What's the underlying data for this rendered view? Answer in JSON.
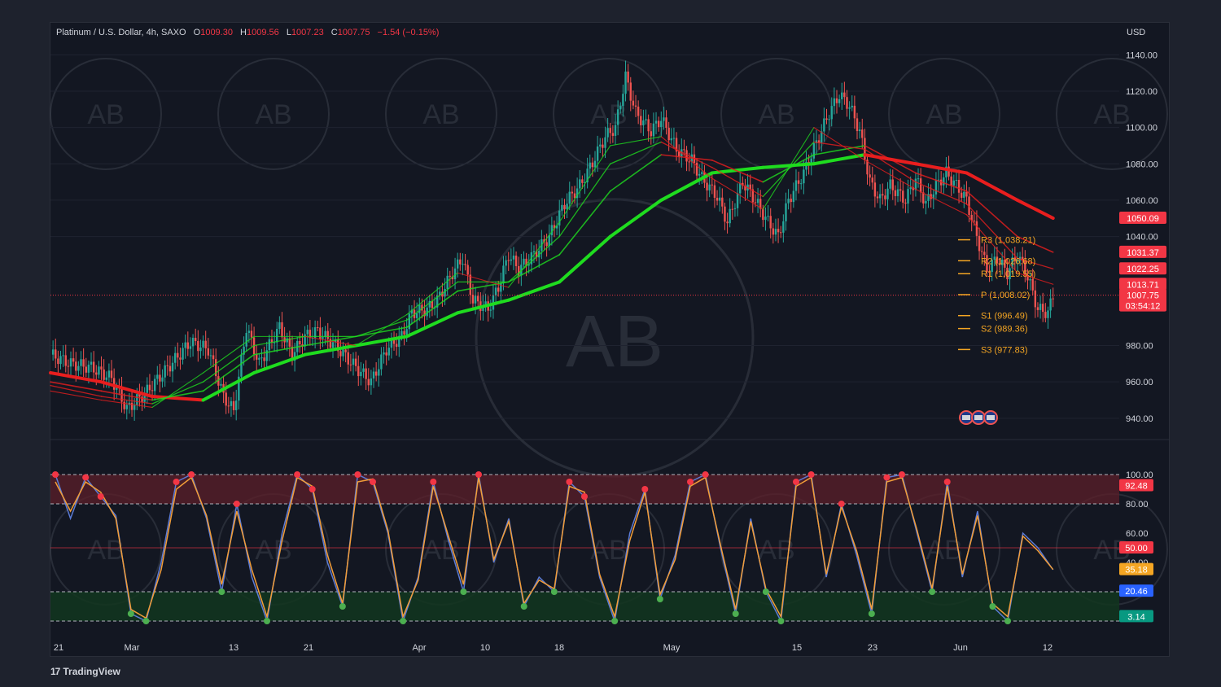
{
  "header": {
    "symbol": "Platinum / U.S. Dollar, 4h, SAXO",
    "open_label": "O",
    "open": "1009.30",
    "high_label": "H",
    "high": "1009.56",
    "low_label": "L",
    "low": "1007.23",
    "close_label": "C",
    "close": "1007.75",
    "change": "−1.54 (−0.15%)"
  },
  "currency": "USD",
  "branding": {
    "tradingview": "TradingView",
    "watermark": "AB"
  },
  "colors": {
    "background": "#131722",
    "up": "#26a69a",
    "down": "#ef5350",
    "ma_green": "#1fdc1f",
    "ma_red": "#e81e1e",
    "pivot": "#f5a623",
    "stoch_k": "#5b7bd5",
    "stoch_d": "#f29d38"
  },
  "chart_data": [
    {
      "type": "candlestick",
      "title": "Platinum / U.S. Dollar, 4h, SAXO",
      "ylim": [
        935,
        1150
      ],
      "y_ticks": [
        "1140.00",
        "1120.00",
        "1100.00",
        "1080.00",
        "1060.00",
        "1040.00",
        "980.00",
        "960.00",
        "940.00"
      ],
      "x_ticks": [
        "21",
        "Mar",
        "13",
        "21",
        "Apr",
        "10",
        "18",
        "May",
        "15",
        "23",
        "Jun",
        "12"
      ],
      "close_path": [
        [
          0,
          975
        ],
        [
          8,
          970
        ],
        [
          16,
          968
        ],
        [
          24,
          962
        ],
        [
          30,
          945
        ],
        [
          38,
          955
        ],
        [
          45,
          966
        ],
        [
          55,
          982
        ],
        [
          62,
          978
        ],
        [
          68,
          952
        ],
        [
          72,
          944
        ],
        [
          77,
          990
        ],
        [
          82,
          970
        ],
        [
          90,
          990
        ],
        [
          95,
          975
        ],
        [
          100,
          985
        ],
        [
          105,
          988
        ],
        [
          112,
          980
        ],
        [
          120,
          968
        ],
        [
          126,
          960
        ],
        [
          132,
          978
        ],
        [
          138,
          985
        ],
        [
          142,
          998
        ],
        [
          148,
          1000
        ],
        [
          152,
          1005
        ],
        [
          158,
          1020
        ],
        [
          162,
          1028
        ],
        [
          166,
          1005
        ],
        [
          172,
          1000
        ],
        [
          176,
          1012
        ],
        [
          180,
          1030
        ],
        [
          184,
          1022
        ],
        [
          190,
          1030
        ],
        [
          196,
          1040
        ],
        [
          202,
          1058
        ],
        [
          208,
          1068
        ],
        [
          212,
          1078
        ],
        [
          218,
          1095
        ],
        [
          222,
          1100
        ],
        [
          226,
          1128
        ],
        [
          230,
          1108
        ],
        [
          236,
          1098
        ],
        [
          240,
          1105
        ],
        [
          246,
          1088
        ],
        [
          252,
          1082
        ],
        [
          256,
          1072
        ],
        [
          262,
          1062
        ],
        [
          266,
          1048
        ],
        [
          272,
          1070
        ],
        [
          276,
          1062
        ],
        [
          282,
          1048
        ],
        [
          286,
          1040
        ],
        [
          290,
          1060
        ],
        [
          296,
          1075
        ],
        [
          302,
          1095
        ],
        [
          306,
          1108
        ],
        [
          310,
          1118
        ],
        [
          314,
          1112
        ],
        [
          318,
          1098
        ],
        [
          322,
          1070
        ],
        [
          326,
          1060
        ],
        [
          330,
          1068
        ],
        [
          336,
          1060
        ],
        [
          340,
          1072
        ],
        [
          344,
          1058
        ],
        [
          348,
          1068
        ],
        [
          352,
          1075
        ],
        [
          356,
          1068
        ],
        [
          360,
          1060
        ],
        [
          364,
          1040
        ],
        [
          368,
          1022
        ],
        [
          372,
          1028
        ],
        [
          376,
          1020
        ],
        [
          380,
          1030
        ],
        [
          384,
          1018
        ],
        [
          388,
          1000
        ],
        [
          392,
          998
        ],
        [
          394,
          1007.75
        ]
      ],
      "series": [
        {
          "name": "",
          "points": [
            [
              0,
              965
            ],
            [
              20,
              960
            ],
            [
              40,
              952
            ],
            [
              60,
              950
            ],
            [
              80,
              965
            ],
            [
              100,
              975
            ],
            [
              120,
              980
            ],
            [
              140,
              985
            ],
            [
              160,
              998
            ],
            [
              180,
              1005
            ],
            [
              200,
              1015
            ],
            [
              220,
              1040
            ],
            [
              240,
              1060
            ],
            [
              260,
              1075
            ],
            [
              280,
              1078
            ],
            [
              300,
              1080
            ],
            [
              320,
              1085
            ],
            [
              340,
              1080
            ],
            [
              360,
              1075
            ],
            [
              380,
              1060
            ],
            [
              394,
              1050.09
            ]
          ]
        },
        {
          "name": "",
          "points": [
            [
              0,
              960
            ],
            [
              20,
              955
            ],
            [
              40,
              950
            ],
            [
              60,
              955
            ],
            [
              80,
              975
            ],
            [
              100,
              980
            ],
            [
              120,
              985
            ],
            [
              140,
              990
            ],
            [
              160,
              1010
            ],
            [
              180,
              1015
            ],
            [
              200,
              1030
            ],
            [
              220,
              1065
            ],
            [
              240,
              1085
            ],
            [
              260,
              1082
            ],
            [
              280,
              1070
            ],
            [
              300,
              1085
            ],
            [
              320,
              1090
            ],
            [
              340,
              1075
            ],
            [
              360,
              1065
            ],
            [
              380,
              1040
            ],
            [
              394,
              1031.37
            ]
          ]
        },
        {
          "name": "",
          "points": [
            [
              0,
              958
            ],
            [
              20,
              952
            ],
            [
              40,
              948
            ],
            [
              60,
              960
            ],
            [
              80,
              980
            ],
            [
              100,
              985
            ],
            [
              120,
              985
            ],
            [
              140,
              994
            ],
            [
              160,
              1015
            ],
            [
              180,
              1015
            ],
            [
              200,
              1040
            ],
            [
              220,
              1080
            ],
            [
              240,
              1092
            ],
            [
              260,
              1078
            ],
            [
              280,
              1062
            ],
            [
              300,
              1092
            ],
            [
              320,
              1088
            ],
            [
              340,
              1070
            ],
            [
              360,
              1058
            ],
            [
              380,
              1028
            ],
            [
              394,
              1022.25
            ]
          ]
        },
        {
          "name": "",
          "points": [
            [
              0,
              955
            ],
            [
              20,
              950
            ],
            [
              40,
              946
            ],
            [
              60,
              965
            ],
            [
              80,
              985
            ],
            [
              100,
              985
            ],
            [
              120,
              980
            ],
            [
              140,
              997
            ],
            [
              160,
              1020
            ],
            [
              180,
              1012
            ],
            [
              200,
              1048
            ],
            [
              220,
              1090
            ],
            [
              240,
              1095
            ],
            [
              260,
              1072
            ],
            [
              280,
              1055
            ],
            [
              300,
              1100
            ],
            [
              320,
              1082
            ],
            [
              340,
              1066
            ],
            [
              360,
              1052
            ],
            [
              380,
              1020
            ],
            [
              394,
              1013.71
            ]
          ]
        }
      ],
      "pivots": [
        {
          "label": "R3 (1,038.21)",
          "value": 1038.21
        },
        {
          "label": "R2 (1,026.68)",
          "value": 1026.68
        },
        {
          "label": "R1 (1,019.55)",
          "value": 1019.55
        },
        {
          "label": "P (1,008.02)",
          "value": 1008.02
        },
        {
          "label": "S1 (996.49)",
          "value": 996.49
        },
        {
          "label": "S2 (989.36)",
          "value": 989.36
        },
        {
          "label": "S3 (977.83)",
          "value": 977.83
        }
      ],
      "price_labels": [
        {
          "text": "1050.09",
          "value": 1050.09,
          "color": "#f23645"
        },
        {
          "text": "1031.37",
          "value": 1031.37,
          "color": "#f23645"
        },
        {
          "text": "1022.25",
          "value": 1022.25,
          "color": "#f23645"
        },
        {
          "text": "1013.71",
          "value": 1013.71,
          "color": "#f23645"
        },
        {
          "text": "1007.75",
          "value": 1007.75,
          "color": "#f23645"
        }
      ],
      "countdown": "03:54:12",
      "current_price": 1007.75
    },
    {
      "type": "line",
      "ylim": [
        0,
        100
      ],
      "y_ticks": [
        "100.00",
        "80.00",
        "60.00",
        "40.00"
      ],
      "bands": {
        "overbought": 80,
        "oversold": 20,
        "mid": 50
      },
      "series": [
        {
          "name": "",
          "values": [
            100,
            70,
            98,
            85,
            72,
            5,
            0,
            40,
            95,
            100,
            70,
            20,
            80,
            30,
            0,
            60,
            100,
            90,
            40,
            10,
            100,
            95,
            60,
            0,
            30,
            95,
            55,
            20,
            100,
            40,
            70,
            10,
            30,
            20,
            95,
            85,
            30,
            0,
            60,
            90,
            15,
            45,
            95,
            100,
            50,
            5,
            70,
            20,
            0,
            95,
            100,
            30,
            80,
            45,
            5,
            98,
            100,
            60,
            20,
            95,
            30,
            75,
            10,
            0,
            60,
            50,
            35
          ]
        },
        {
          "name": "",
          "values": [
            95,
            75,
            95,
            88,
            70,
            8,
            2,
            35,
            90,
            98,
            72,
            25,
            75,
            35,
            3,
            55,
            98,
            92,
            45,
            12,
            95,
            97,
            62,
            3,
            28,
            92,
            58,
            25,
            98,
            42,
            68,
            12,
            28,
            22,
            92,
            88,
            32,
            3,
            55,
            88,
            18,
            42,
            92,
            98,
            52,
            8,
            68,
            22,
            3,
            92,
            98,
            32,
            78,
            48,
            8,
            95,
            98,
            62,
            22,
            92,
            32,
            72,
            12,
            3,
            58,
            48,
            35.18
          ]
        }
      ],
      "price_labels": [
        {
          "text": "92.48",
          "value": 92.48,
          "color": "#f23645"
        },
        {
          "text": "50.00",
          "value": 50,
          "color": "#f23645"
        },
        {
          "text": "35.18",
          "value": 35.18,
          "color": "#f5a623"
        },
        {
          "text": "20.46",
          "value": 20.46,
          "color": "#2962ff"
        },
        {
          "text": "3.14",
          "value": 3.14,
          "color": "#089981"
        }
      ]
    }
  ]
}
